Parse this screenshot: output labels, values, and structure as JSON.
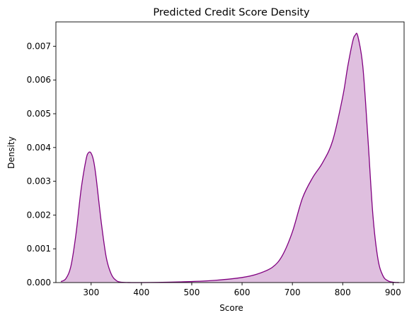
{
  "chart_data": {
    "type": "area",
    "title": "Predicted Credit Score Density",
    "xlabel": "Score",
    "ylabel": "Density",
    "xlim": [
      230,
      922
    ],
    "ylim": [
      0,
      0.00772
    ],
    "x_ticks": [
      300,
      400,
      500,
      600,
      700,
      800,
      900
    ],
    "y_ticks": [
      0.0,
      0.001,
      0.002,
      0.003,
      0.004,
      0.005,
      0.006,
      0.007
    ],
    "y_tick_labels": [
      "0.000",
      "0.001",
      "0.002",
      "0.003",
      "0.004",
      "0.005",
      "0.006",
      "0.007"
    ],
    "grid": false,
    "legend": "none",
    "colors": {
      "line": "#800080",
      "fill": "#800080",
      "fill_opacity": 0.25
    },
    "series": [
      {
        "x": [
          240,
          250,
          260,
          270,
          280,
          290,
          295,
          300,
          305,
          310,
          320,
          330,
          340,
          350,
          360,
          380,
          400,
          450,
          500,
          550,
          600,
          630,
          660,
          680,
          700,
          720,
          740,
          760,
          780,
          800,
          810,
          820,
          825,
          830,
          840,
          850,
          860,
          870,
          880,
          890,
          900,
          912
        ],
        "y": [
          3e-05,
          0.00012,
          0.0005,
          0.00145,
          0.00275,
          0.00365,
          0.00385,
          0.00383,
          0.0036,
          0.0031,
          0.0018,
          0.00075,
          0.00025,
          6e-05,
          1e-05,
          0.0,
          0.0,
          1e-05,
          3e-05,
          7e-05,
          0.00015,
          0.00025,
          0.00045,
          0.0008,
          0.0015,
          0.0025,
          0.0031,
          0.00355,
          0.0042,
          0.0055,
          0.0064,
          0.00715,
          0.00733,
          0.0073,
          0.0064,
          0.0043,
          0.002,
          0.0007,
          0.0002,
          5e-05,
          1e-05,
          0.0
        ]
      }
    ]
  }
}
